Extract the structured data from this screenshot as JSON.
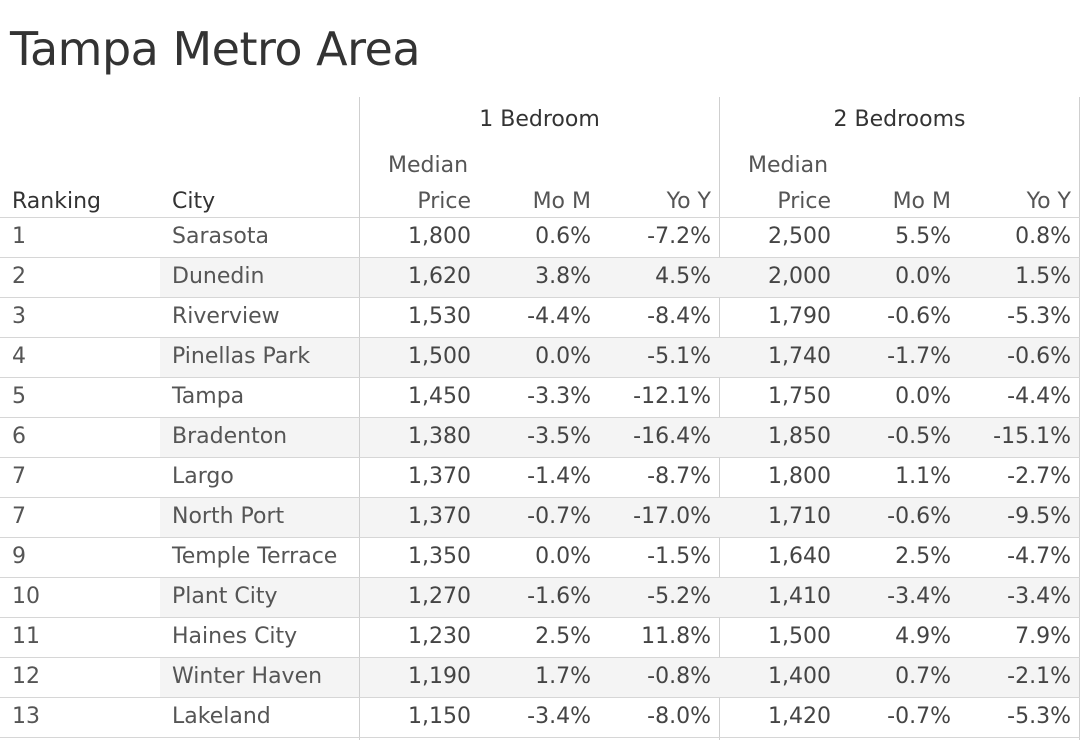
{
  "chart_data": {
    "type": "table",
    "title": "Tampa Metro Area",
    "column_groups": [
      "1 Bedroom",
      "2 Bedrooms"
    ],
    "columns": {
      "ranking": "Ranking",
      "city": "City",
      "median_top": "Median",
      "median_bottom": "Price",
      "mom": "Mo M",
      "yoy": "Yo Y"
    },
    "rows": [
      {
        "rank": "1",
        "city": "Sarasota",
        "b1_price": "1,800",
        "b1_mom": "0.6%",
        "b1_yoy": "-7.2%",
        "b2_price": "2,500",
        "b2_mom": "5.5%",
        "b2_yoy": "0.8%"
      },
      {
        "rank": "2",
        "city": "Dunedin",
        "b1_price": "1,620",
        "b1_mom": "3.8%",
        "b1_yoy": "4.5%",
        "b2_price": "2,000",
        "b2_mom": "0.0%",
        "b2_yoy": "1.5%"
      },
      {
        "rank": "3",
        "city": "Riverview",
        "b1_price": "1,530",
        "b1_mom": "-4.4%",
        "b1_yoy": "-8.4%",
        "b2_price": "1,790",
        "b2_mom": "-0.6%",
        "b2_yoy": "-5.3%"
      },
      {
        "rank": "4",
        "city": "Pinellas Park",
        "b1_price": "1,500",
        "b1_mom": "0.0%",
        "b1_yoy": "-5.1%",
        "b2_price": "1,740",
        "b2_mom": "-1.7%",
        "b2_yoy": "-0.6%"
      },
      {
        "rank": "5",
        "city": "Tampa",
        "b1_price": "1,450",
        "b1_mom": "-3.3%",
        "b1_yoy": "-12.1%",
        "b2_price": "1,750",
        "b2_mom": "0.0%",
        "b2_yoy": "-4.4%"
      },
      {
        "rank": "6",
        "city": "Bradenton",
        "b1_price": "1,380",
        "b1_mom": "-3.5%",
        "b1_yoy": "-16.4%",
        "b2_price": "1,850",
        "b2_mom": "-0.5%",
        "b2_yoy": "-15.1%"
      },
      {
        "rank": "7",
        "city": "Largo",
        "b1_price": "1,370",
        "b1_mom": "-1.4%",
        "b1_yoy": "-8.7%",
        "b2_price": "1,800",
        "b2_mom": "1.1%",
        "b2_yoy": "-2.7%"
      },
      {
        "rank": "7",
        "city": "North Port",
        "b1_price": "1,370",
        "b1_mom": "-0.7%",
        "b1_yoy": "-17.0%",
        "b2_price": "1,710",
        "b2_mom": "-0.6%",
        "b2_yoy": "-9.5%"
      },
      {
        "rank": "9",
        "city": "Temple Terrace",
        "b1_price": "1,350",
        "b1_mom": "0.0%",
        "b1_yoy": "-1.5%",
        "b2_price": "1,640",
        "b2_mom": "2.5%",
        "b2_yoy": "-4.7%"
      },
      {
        "rank": "10",
        "city": "Plant City",
        "b1_price": "1,270",
        "b1_mom": "-1.6%",
        "b1_yoy": "-5.2%",
        "b2_price": "1,410",
        "b2_mom": "-3.4%",
        "b2_yoy": "-3.4%"
      },
      {
        "rank": "11",
        "city": "Haines City",
        "b1_price": "1,230",
        "b1_mom": "2.5%",
        "b1_yoy": "11.8%",
        "b2_price": "1,500",
        "b2_mom": "4.9%",
        "b2_yoy": "7.9%"
      },
      {
        "rank": "12",
        "city": "Winter Haven",
        "b1_price": "1,190",
        "b1_mom": "1.7%",
        "b1_yoy": "-0.8%",
        "b2_price": "1,400",
        "b2_mom": "0.7%",
        "b2_yoy": "-2.1%"
      },
      {
        "rank": "13",
        "city": "Lakeland",
        "b1_price": "1,150",
        "b1_mom": "-3.4%",
        "b1_yoy": "-8.0%",
        "b2_price": "1,420",
        "b2_mom": "-0.7%",
        "b2_yoy": "-5.3%"
      }
    ]
  }
}
